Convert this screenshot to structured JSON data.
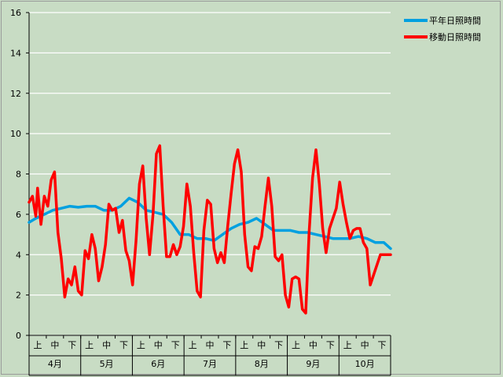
{
  "chart_data": {
    "type": "line",
    "title": "",
    "xlabel": "",
    "ylabel": "",
    "ylim": [
      0,
      16
    ],
    "yticks": [
      0,
      2,
      4,
      6,
      8,
      10,
      12,
      14,
      16
    ],
    "grid": "horizontal",
    "legend_position": "top-right",
    "months": [
      "4月",
      "5月",
      "6月",
      "7月",
      "8月",
      "9月",
      "10月"
    ],
    "periods": [
      "上",
      "中",
      "下"
    ],
    "x_unit": "day of period Apr 1 – Oct 31 (214 days)",
    "x_range": [
      1,
      214
    ],
    "series": [
      {
        "name": "平年日照時間",
        "color": "#00a0e0",
        "x": [
          1,
          5,
          10,
          15,
          20,
          25,
          30,
          35,
          40,
          45,
          50,
          55,
          60,
          65,
          70,
          75,
          80,
          85,
          90,
          95,
          100,
          105,
          110,
          115,
          120,
          125,
          130,
          135,
          140,
          145,
          150,
          155,
          160,
          165,
          170,
          175,
          180,
          185,
          190,
          195,
          200,
          205,
          210,
          214
        ],
        "values": [
          5.6,
          5.8,
          6.0,
          6.2,
          6.3,
          6.4,
          6.35,
          6.4,
          6.4,
          6.2,
          6.2,
          6.4,
          6.8,
          6.6,
          6.2,
          6.1,
          6.0,
          5.6,
          5.0,
          5.0,
          4.8,
          4.8,
          4.7,
          5.0,
          5.3,
          5.5,
          5.6,
          5.8,
          5.5,
          5.2,
          5.2,
          5.2,
          5.1,
          5.1,
          5.0,
          4.9,
          4.8,
          4.8,
          4.8,
          4.9,
          4.8,
          4.6,
          4.6,
          4.3
        ]
      },
      {
        "name": "移動日照時間",
        "color": "#ff0000",
        "x": [
          1,
          3,
          5,
          6,
          8,
          10,
          12,
          14,
          16,
          18,
          20,
          22,
          24,
          26,
          28,
          30,
          32,
          34,
          36,
          38,
          40,
          42,
          44,
          46,
          48,
          50,
          52,
          54,
          56,
          58,
          60,
          62,
          64,
          66,
          68,
          70,
          72,
          74,
          76,
          78,
          80,
          82,
          84,
          86,
          88,
          90,
          92,
          94,
          96,
          98,
          100,
          102,
          104,
          106,
          108,
          110,
          112,
          114,
          116,
          118,
          120,
          122,
          124,
          126,
          128,
          130,
          132,
          134,
          136,
          138,
          140,
          142,
          144,
          146,
          148,
          150,
          152,
          154,
          156,
          158,
          160,
          162,
          164,
          166,
          168,
          170,
          172,
          174,
          176,
          178,
          180,
          182,
          184,
          186,
          188,
          190,
          192,
          194,
          196,
          198,
          200,
          202,
          204,
          206,
          208,
          210,
          212,
          214
        ],
        "values": [
          6.6,
          6.9,
          5.9,
          7.3,
          5.5,
          6.9,
          6.4,
          7.7,
          8.1,
          5.1,
          3.8,
          1.9,
          2.8,
          2.5,
          3.4,
          2.2,
          2.0,
          4.2,
          3.8,
          5.0,
          4.3,
          2.7,
          3.4,
          4.5,
          6.5,
          6.2,
          6.3,
          5.1,
          5.7,
          4.2,
          3.7,
          2.5,
          4.7,
          7.5,
          8.4,
          5.8,
          4.0,
          6.0,
          9.0,
          9.4,
          6.4,
          3.9,
          3.9,
          4.5,
          4.0,
          4.4,
          5.4,
          7.5,
          6.4,
          4.1,
          2.2,
          1.9,
          5.2,
          6.7,
          6.5,
          4.3,
          3.6,
          4.1,
          3.6,
          5.4,
          7.0,
          8.5,
          9.2,
          8.1,
          5.0,
          3.4,
          3.2,
          4.4,
          4.3,
          4.9,
          6.4,
          7.8,
          6.4,
          3.9,
          3.7,
          4.0,
          2.0,
          1.4,
          2.8,
          2.9,
          2.8,
          1.3,
          1.1,
          5.1,
          7.8,
          9.2,
          7.5,
          5.3,
          4.1,
          5.3,
          5.8,
          6.3,
          7.6,
          6.5,
          5.6,
          4.8,
          5.2,
          5.3,
          5.3,
          4.6,
          4.3,
          2.5,
          3.0,
          3.5,
          4.0,
          4.0,
          4.0,
          4.0
        ]
      }
    ]
  }
}
